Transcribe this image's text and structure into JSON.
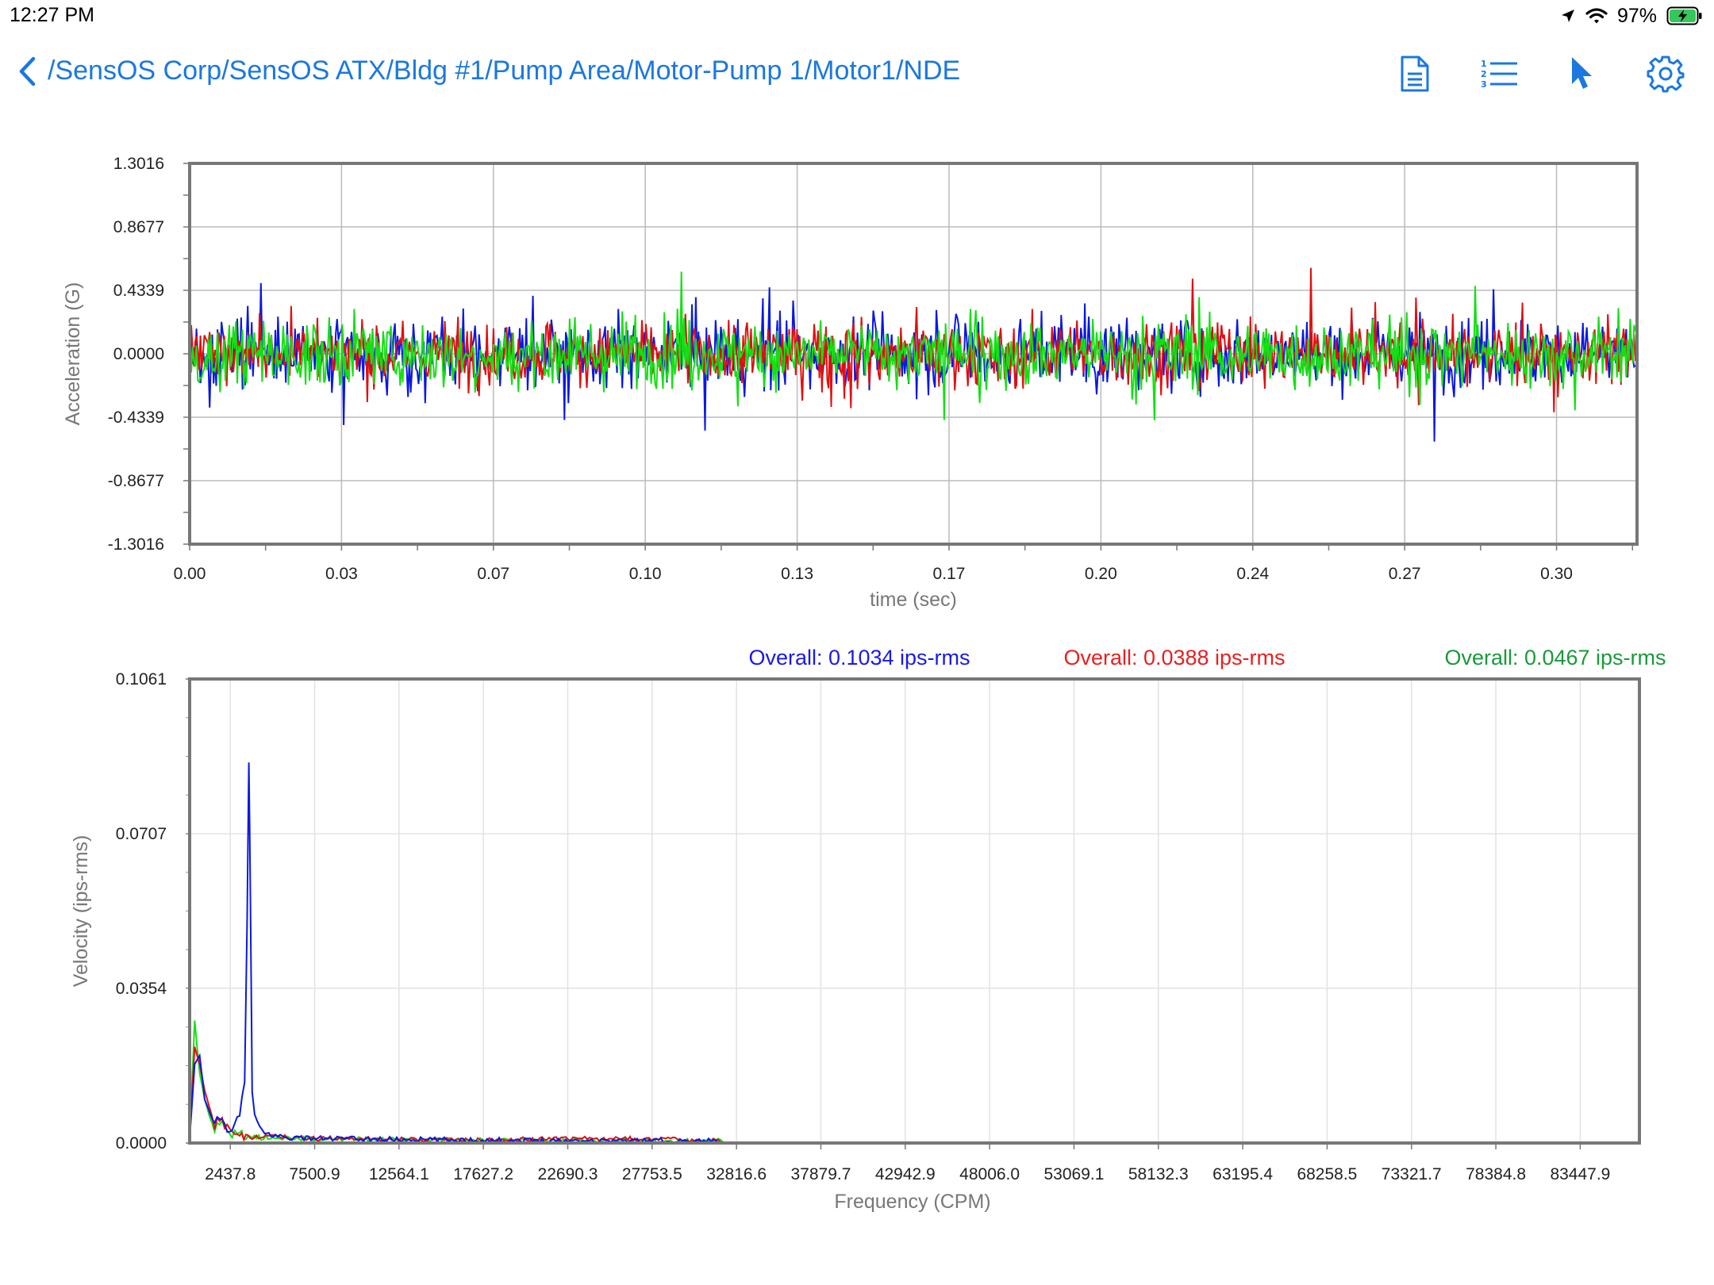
{
  "status_bar": {
    "time": "12:27 PM",
    "battery": "97%"
  },
  "nav": {
    "breadcrumb": "/SensOS Corp/SensOS ATX/Bldg #1/Pump Area/Motor-Pump 1/Motor1/NDE",
    "icons": [
      "back-chevron-icon",
      "document-icon",
      "numbered-list-icon",
      "pointer-icon",
      "gear-icon"
    ],
    "accent_color": "#1a78e0"
  },
  "chart_data": [
    {
      "type": "line",
      "ylabel": "Acceleration (G)",
      "xlabel": "time (sec)",
      "ylim": [
        -1.3016,
        1.3016
      ],
      "xlim": [
        0.0,
        0.316
      ],
      "y_ticks": [
        "1.3016",
        "0.8677",
        "0.4339",
        "0.0000",
        "-0.4339",
        "-0.8677",
        "-1.3016"
      ],
      "x_ticks": [
        "0.00",
        "0.03",
        "0.07",
        "0.10",
        "0.13",
        "0.17",
        "0.20",
        "0.24",
        "0.27",
        "0.30"
      ],
      "grid": true,
      "series": [
        {
          "color": "#0a18e0",
          "approx_peak_abs": 0.97,
          "approx_rms": 0.17
        },
        {
          "color": "#e01010",
          "approx_peak_abs": 0.7,
          "approx_rms": 0.15
        },
        {
          "color": "#14e014",
          "approx_peak_abs": 0.6,
          "approx_rms": 0.16
        }
      ]
    },
    {
      "type": "line",
      "ylabel": "Velocity (ips-rms)",
      "xlabel": "Frequency (CPM)",
      "ylim": [
        0.0,
        0.1061
      ],
      "xlim": [
        0.0,
        87000
      ],
      "y_ticks": [
        "0.1061",
        "0.0707",
        "0.0354",
        "0.0000"
      ],
      "x_ticks": [
        "2437.8",
        "7500.9",
        "12564.1",
        "17627.2",
        "22690.3",
        "27753.5",
        "32816.6",
        "37879.7",
        "42942.9",
        "48006.0",
        "53069.1",
        "58132.3",
        "63195.4",
        "68258.5",
        "73321.7",
        "78384.8",
        "83447.9"
      ],
      "grid": true,
      "overall_labels": [
        {
          "text": "Overall: 0.1034 ips-rms",
          "color": "#1a1ae8"
        },
        {
          "text": "Overall: 0.0388 ips-rms",
          "color": "#e82020"
        },
        {
          "text": "Overall: 0.0467 ips-rms",
          "color": "#1a9a3a"
        }
      ],
      "series": [
        {
          "color": "#0a18e0",
          "x": [
            0,
            300,
            600,
            900,
            1200,
            1500,
            1800,
            2100,
            2400,
            2700,
            3000,
            3300,
            3450,
            3550,
            3650,
            3750,
            3900,
            4200,
            4500,
            5000,
            6000,
            8000,
            12000,
            18000,
            25000,
            32000
          ],
          "y": [
            0.001,
            0.018,
            0.02,
            0.01,
            0.007,
            0.004,
            0.006,
            0.004,
            0.003,
            0.004,
            0.006,
            0.014,
            0.05,
            0.088,
            0.055,
            0.012,
            0.006,
            0.003,
            0.002,
            0.0015,
            0.001,
            0.0008,
            0.0006,
            0.0004,
            0.0003,
            0.0002
          ]
        },
        {
          "color": "#e01010",
          "x": [
            0,
            300,
            600,
            900,
            1200,
            1500,
            1800,
            2100,
            2400,
            2700,
            3000,
            3500,
            4000,
            5000,
            6000,
            8000,
            12000,
            18000,
            25000,
            32000
          ],
          "y": [
            0.001,
            0.022,
            0.018,
            0.012,
            0.008,
            0.004,
            0.006,
            0.004,
            0.003,
            0.002,
            0.002,
            0.0015,
            0.0015,
            0.001,
            0.001,
            0.0008,
            0.0006,
            0.0004,
            0.0008,
            0.0002
          ]
        },
        {
          "color": "#14e014",
          "x": [
            0,
            300,
            600,
            900,
            1200,
            1500,
            1800,
            2100,
            2400,
            2700,
            3000,
            3500,
            4000,
            5000,
            6000,
            8000,
            12000,
            18000,
            25000,
            32000
          ],
          "y": [
            0.001,
            0.028,
            0.016,
            0.01,
            0.006,
            0.003,
            0.005,
            0.004,
            0.002,
            0.002,
            0.002,
            0.0015,
            0.001,
            0.001,
            0.0008,
            0.0006,
            0.0005,
            0.0003,
            0.0002,
            0.0002
          ]
        }
      ]
    }
  ]
}
